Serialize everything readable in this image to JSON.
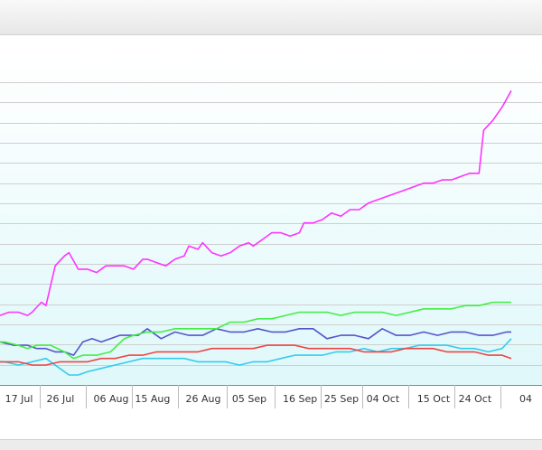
{
  "chart_data": {
    "type": "line",
    "title": "",
    "xlabel": "",
    "ylabel": "",
    "grid": true,
    "x_tick_labels": [
      "17 Jul",
      "26 Jul",
      "06 Aug",
      "15 Aug",
      "26 Aug",
      "05 Sep",
      "16 Sep",
      "25 Sep",
      "04 Oct",
      "15 Oct",
      "24 Oct",
      "04"
    ],
    "x_tick_days": [
      0,
      9,
      20,
      29,
      40,
      50,
      61,
      70,
      79,
      90,
      99,
      110
    ],
    "ylim": [
      0,
      100
    ],
    "y_gridlines": [
      0,
      6.1,
      12.2,
      18.3,
      24.4,
      30.5,
      36.6,
      42.7,
      48.8,
      54.9,
      61.0,
      67.1,
      73.2,
      79.3,
      85.4,
      91.5
    ],
    "colors": {
      "magenta": "#ff33ff",
      "green": "#44ee44",
      "blue": "#5555cc",
      "red": "#ee4444",
      "cyan": "#33ccee",
      "grid": "#cfcfcf",
      "plot_bg_top": "#ffffff",
      "plot_bg_bottom": "#dff8fa"
    },
    "series": [
      {
        "color": "magenta",
        "x": [
          -3,
          -1,
          1,
          3,
          5,
          6,
          8,
          9,
          11,
          13,
          14,
          16,
          18,
          20,
          22,
          24,
          26,
          28,
          30,
          31,
          33,
          35,
          37,
          39,
          40,
          42,
          43,
          45,
          47,
          49,
          51,
          53,
          54,
          56,
          58,
          60,
          62,
          64,
          65,
          67,
          69,
          71,
          73,
          75,
          77,
          79,
          81,
          83,
          85,
          87,
          89,
          91,
          93,
          95,
          97,
          99,
          101,
          103,
          104,
          106,
          108,
          110
        ],
        "y": [
          22,
          21,
          22,
          22,
          21,
          22,
          25,
          24,
          36,
          39,
          40,
          35,
          35,
          34,
          36,
          36,
          36,
          35,
          38,
          38,
          37,
          36,
          38,
          39,
          42,
          41,
          43,
          40,
          39,
          40,
          42,
          43,
          42,
          44,
          46,
          46,
          45,
          46,
          49,
          49,
          50,
          52,
          51,
          53,
          53,
          55,
          56,
          57,
          58,
          59,
          60,
          61,
          61,
          62,
          62,
          63,
          64,
          64,
          77,
          80,
          84,
          89
        ]
      },
      {
        "color": "green",
        "x": [
          -3,
          0,
          3,
          5,
          7,
          10,
          13,
          15,
          17,
          20,
          23,
          26,
          28,
          31,
          34,
          37,
          40,
          43,
          46,
          49,
          52,
          55,
          58,
          61,
          64,
          67,
          70,
          73,
          76,
          79,
          82,
          85,
          88,
          91,
          94,
          97,
          100,
          103,
          106,
          109,
          110
        ],
        "y": [
          13,
          13,
          12,
          11,
          12,
          12,
          10,
          8,
          9,
          9,
          10,
          14,
          15,
          16,
          16,
          17,
          17,
          17,
          17,
          19,
          19,
          20,
          20,
          21,
          22,
          22,
          22,
          21,
          22,
          22,
          22,
          21,
          22,
          23,
          23,
          23,
          24,
          24,
          25,
          25,
          25
        ]
      },
      {
        "color": "blue",
        "x": [
          -3,
          -1,
          2,
          5,
          7,
          9,
          11,
          13,
          15,
          17,
          19,
          21,
          23,
          25,
          27,
          29,
          31,
          34,
          37,
          40,
          43,
          46,
          49,
          52,
          55,
          58,
          61,
          64,
          67,
          70,
          73,
          76,
          79,
          82,
          85,
          88,
          91,
          94,
          97,
          100,
          103,
          106,
          109,
          110
        ],
        "y": [
          13,
          13,
          12,
          12,
          11,
          11,
          10,
          10,
          9,
          13,
          14,
          13,
          14,
          15,
          15,
          15,
          17,
          14,
          16,
          15,
          15,
          17,
          16,
          16,
          17,
          16,
          16,
          17,
          17,
          14,
          15,
          15,
          14,
          17,
          15,
          15,
          16,
          15,
          16,
          16,
          15,
          15,
          16,
          16
        ]
      },
      {
        "color": "red",
        "x": [
          -3,
          0,
          3,
          6,
          9,
          12,
          15,
          18,
          21,
          24,
          27,
          30,
          33,
          36,
          39,
          42,
          45,
          48,
          51,
          54,
          57,
          60,
          63,
          66,
          69,
          72,
          75,
          78,
          81,
          84,
          87,
          90,
          93,
          96,
          99,
          102,
          105,
          108,
          110
        ],
        "y": [
          7,
          7,
          7,
          6,
          6,
          7,
          7,
          7,
          8,
          8,
          9,
          9,
          10,
          10,
          10,
          10,
          11,
          11,
          11,
          11,
          12,
          12,
          12,
          11,
          11,
          11,
          11,
          10,
          10,
          10,
          11,
          11,
          11,
          10,
          10,
          10,
          9,
          9,
          8
        ]
      },
      {
        "color": "cyan",
        "x": [
          -3,
          0,
          3,
          6,
          9,
          12,
          14,
          16,
          18,
          21,
          24,
          27,
          30,
          33,
          36,
          39,
          42,
          45,
          48,
          51,
          54,
          57,
          60,
          63,
          66,
          69,
          72,
          75,
          78,
          81,
          84,
          87,
          90,
          93,
          96,
          99,
          102,
          105,
          108,
          110
        ],
        "y": [
          7,
          7,
          6,
          7,
          8,
          5,
          3,
          3,
          4,
          5,
          6,
          7,
          8,
          8,
          8,
          8,
          7,
          7,
          7,
          6,
          7,
          7,
          8,
          9,
          9,
          9,
          10,
          10,
          11,
          10,
          11,
          11,
          12,
          12,
          12,
          11,
          11,
          10,
          11,
          14
        ]
      }
    ]
  }
}
